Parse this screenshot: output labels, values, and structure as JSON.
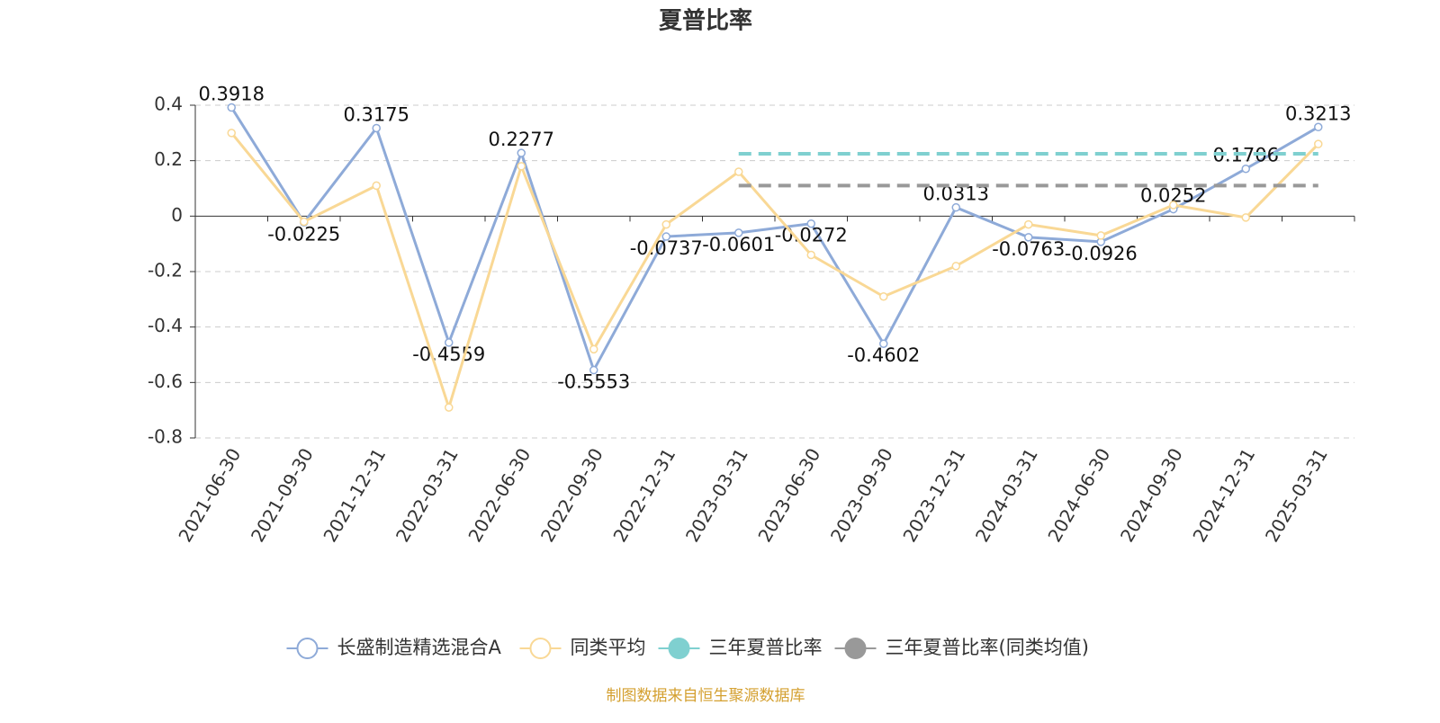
{
  "chart_data": {
    "type": "line",
    "title": "夏普比率",
    "categories": [
      "2021-06-30",
      "2021-09-30",
      "2021-12-31",
      "2022-03-31",
      "2022-06-30",
      "2022-09-30",
      "2022-12-31",
      "2023-03-31",
      "2023-06-30",
      "2023-09-30",
      "2023-12-31",
      "2024-03-31",
      "2024-06-30",
      "2024-09-30",
      "2024-12-31",
      "2025-03-31"
    ],
    "series": [
      {
        "name": "长盛制造精选混合A",
        "color": "#8eaad8",
        "marker": "hollow",
        "data_labels": true,
        "values": [
          0.3918,
          -0.0225,
          0.3175,
          -0.4559,
          0.2277,
          -0.5553,
          -0.0737,
          -0.0601,
          -0.0272,
          -0.4602,
          0.0313,
          -0.0763,
          -0.0926,
          0.0252,
          0.1706,
          0.3213
        ]
      },
      {
        "name": "同类平均",
        "color": "#f9d895",
        "marker": "hollow",
        "data_labels": false,
        "values": [
          0.3,
          -0.02,
          0.11,
          -0.69,
          0.18,
          -0.48,
          -0.03,
          0.16,
          -0.14,
          -0.29,
          -0.18,
          -0.03,
          -0.07,
          0.04,
          -0.005,
          0.26
        ]
      },
      {
        "name": "三年夏普比率",
        "color": "#7fd0d0",
        "marker": "none",
        "dashed": true,
        "data_labels": false,
        "values": [
          null,
          null,
          null,
          null,
          null,
          null,
          null,
          0.225,
          0.225,
          0.225,
          0.225,
          0.225,
          0.225,
          0.225,
          0.225,
          0.225
        ]
      },
      {
        "name": "三年夏普比率(同类均值)",
        "color": "#999999",
        "marker": "none",
        "dashed": true,
        "data_labels": false,
        "values": [
          null,
          null,
          null,
          null,
          null,
          null,
          null,
          0.11,
          0.11,
          0.11,
          0.11,
          0.11,
          0.11,
          0.11,
          0.11,
          0.11
        ]
      }
    ],
    "ylim": [
      -0.8,
      0.4
    ],
    "yticks": [
      -0.8,
      -0.6,
      -0.4,
      -0.2,
      0,
      0.2,
      0.4
    ],
    "grid": true,
    "legend": "bottom",
    "source": "制图数据来自恒生聚源数据库"
  }
}
